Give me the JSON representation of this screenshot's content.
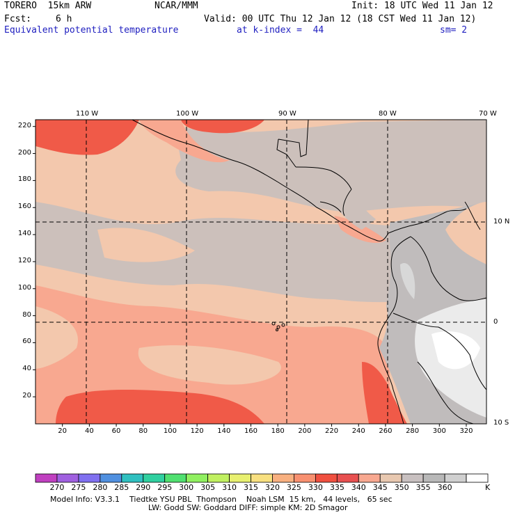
{
  "header": {
    "model": "TORERO  15km ARW",
    "fcst_label": "Fcst:",
    "fcst_value": "6 h",
    "center": "NCAR/MMM",
    "init": "Init: 18 UTC Wed 11 Jan 12",
    "valid": "Valid: 00 UTC Thu 12 Jan 12 (18 CST Wed 11 Jan 12)",
    "field": "Equivalent potential temperature",
    "level": "at k-index =  44",
    "smoothing": "sm= 2"
  },
  "map": {
    "lon_labels": [
      "110 W",
      "100 W",
      "90 W",
      "80 W",
      "70 W"
    ],
    "lat_labels": [
      "10 N",
      "0",
      "10 S"
    ],
    "y_ticks": [
      20,
      40,
      60,
      80,
      100,
      120,
      140,
      160,
      180,
      200,
      220
    ],
    "x_ticks": [
      20,
      40,
      60,
      80,
      100,
      120,
      140,
      160,
      180,
      200,
      220,
      240,
      260,
      280,
      300,
      320
    ]
  },
  "colorbar": {
    "levels": [
      "270",
      "275",
      "280",
      "285",
      "290",
      "295",
      "300",
      "305",
      "310",
      "315",
      "320",
      "325",
      "330",
      "335",
      "340",
      "345",
      "350",
      "355",
      "360"
    ],
    "unit": "K",
    "colors": [
      "#c040c0",
      "#a060e0",
      "#8070f0",
      "#5090e0",
      "#30c0c0",
      "#30d0a0",
      "#50e070",
      "#90f060",
      "#c0f060",
      "#e8f070",
      "#f8e080",
      "#f8b080",
      "#f89070",
      "#f05040",
      "#e85050",
      "#f8a890",
      "#e8c8b0",
      "#c8c0c0",
      "#b8b8b8",
      "#d0d0d0",
      "#ffffff"
    ]
  },
  "footer": {
    "line1": "Model Info: V3.3.1    Tiedtke YSU PBL  Thompson    Noah LSM  15 km,   44 levels,   65 sec",
    "line2": "LW: Godd SW: Goddard DIFF: simple KM: 2D Smagor"
  }
}
